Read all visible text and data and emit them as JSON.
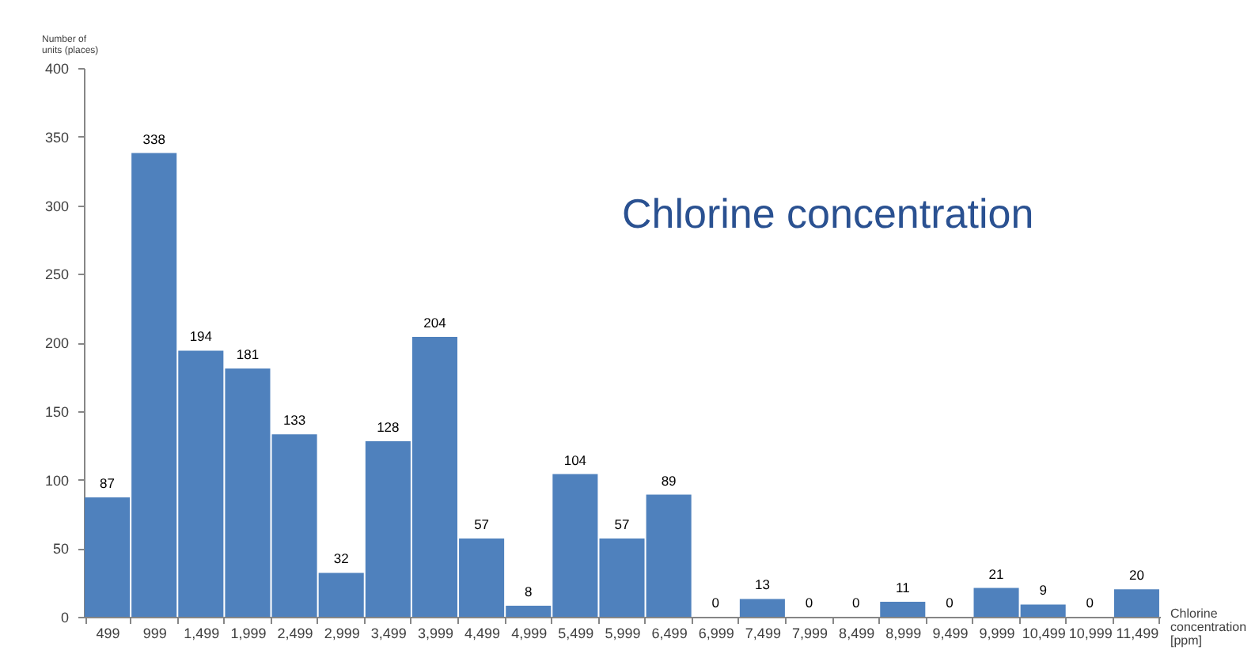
{
  "chart_data": {
    "type": "bar",
    "title": "Chlorine concentration",
    "xlabel": "Chlorine concentration [ppm]",
    "ylabel": "Number of units (places)",
    "categories": [
      "499",
      "999",
      "1,499",
      "1,999",
      "2,499",
      "2,999",
      "3,499",
      "3,999",
      "4,499",
      "4,999",
      "5,499",
      "5,999",
      "6,499",
      "6,999",
      "7,499",
      "7,999",
      "8,499",
      "8,999",
      "9,499",
      "9,999",
      "10,499",
      "10,999",
      "11,499"
    ],
    "values": [
      87,
      338,
      194,
      181,
      133,
      32,
      128,
      204,
      57,
      8,
      104,
      57,
      89,
      0,
      13,
      0,
      0,
      11,
      0,
      21,
      9,
      0,
      20
    ],
    "color": "#4f81bd",
    "ylim": [
      0,
      400
    ],
    "yticks": [
      0,
      50,
      100,
      150,
      200,
      250,
      300,
      350,
      400
    ],
    "grid": false,
    "data_labels": true
  }
}
